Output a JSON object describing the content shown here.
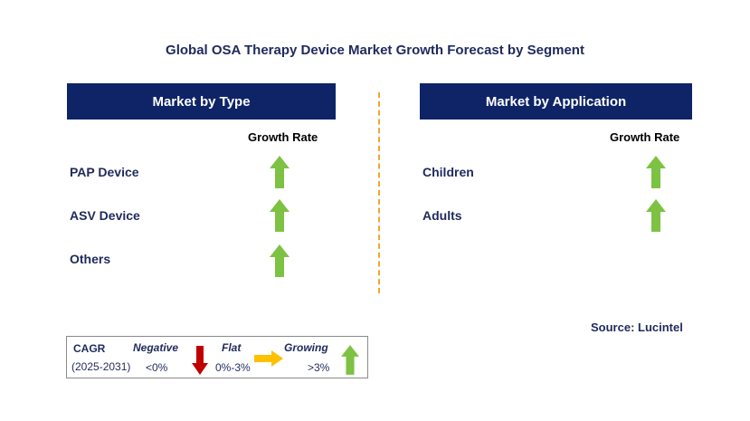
{
  "title": "Global OSA Therapy Device Market Growth Forecast by Segment",
  "left_panel": {
    "header": "Market by Type",
    "column_label": "Growth Rate",
    "rows": [
      {
        "label": "PAP Device",
        "trend": "growing"
      },
      {
        "label": "ASV Device",
        "trend": "growing"
      },
      {
        "label": "Others",
        "trend": "growing"
      }
    ]
  },
  "right_panel": {
    "header": "Market by Application",
    "column_label": "Growth Rate",
    "rows": [
      {
        "label": "Children",
        "trend": "growing"
      },
      {
        "label": "Adults",
        "trend": "growing"
      }
    ]
  },
  "source": "Source: Lucintel",
  "legend": {
    "cagr_label": "CAGR",
    "period": "(2025-2031)",
    "negative_label": "Negative",
    "negative_value": "<0%",
    "flat_label": "Flat",
    "flat_value": "0%-3%",
    "growing_label": "Growing",
    "growing_value": ">3%"
  },
  "colors": {
    "header_bg": "#0e2466",
    "growing_arrow": "#7dc242",
    "negative_arrow": "#c00000",
    "flat_arrow": "#ffc000",
    "divider": "#f2a62a"
  },
  "icons": {
    "growing": "green-up-arrow-icon",
    "negative": "red-down-arrow-icon",
    "flat": "yellow-right-arrow-icon"
  }
}
